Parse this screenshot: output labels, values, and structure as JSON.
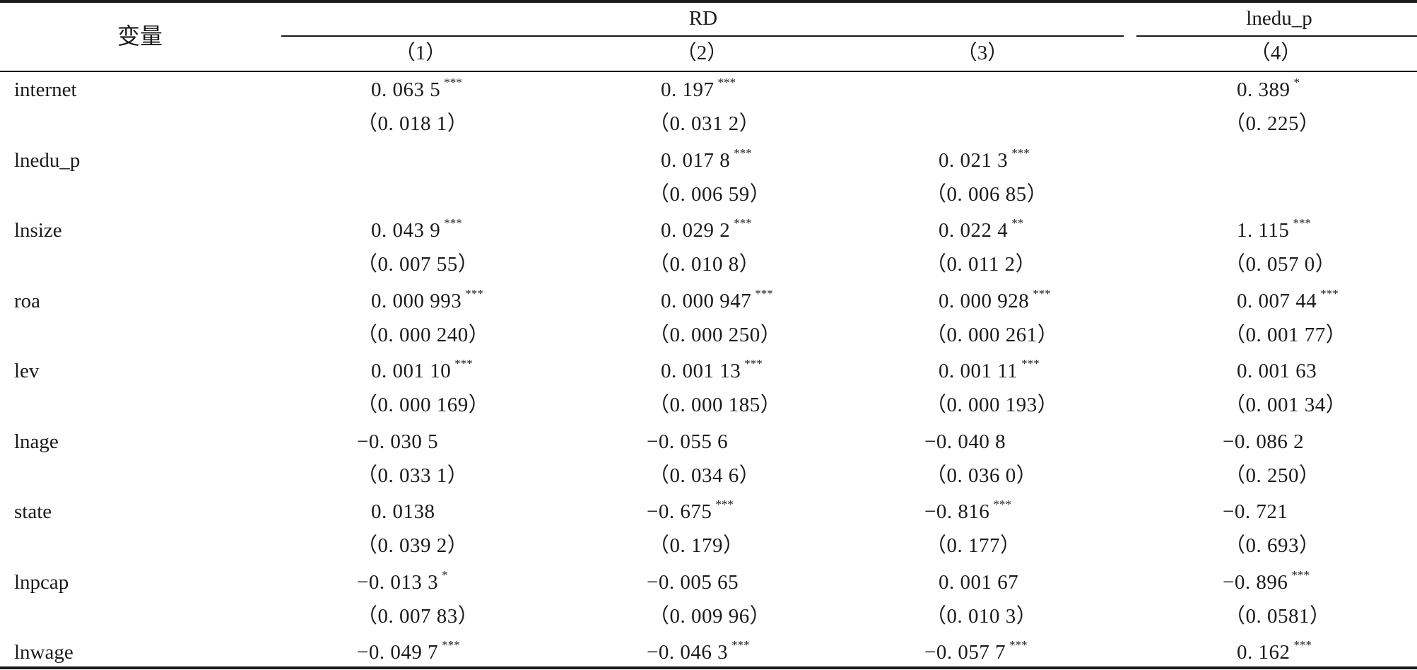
{
  "header": {
    "variable_label": "变量",
    "group_rd": "RD",
    "group_lnedu": "lnedu_p",
    "columns": [
      "（1）",
      "（2）",
      "（3）",
      "（4）"
    ]
  },
  "rows": [
    {
      "name": "internet",
      "coef": [
        {
          "v": "0. 063 5",
          "s": "***"
        },
        {
          "v": "0. 197",
          "s": "***"
        },
        {
          "v": "",
          "s": ""
        },
        {
          "v": "0. 389",
          "s": "*"
        }
      ],
      "se": [
        "（0. 018 1）",
        "（0. 031 2）",
        "",
        "（0. 225）"
      ]
    },
    {
      "name": "lnedu_p",
      "coef": [
        {
          "v": "",
          "s": ""
        },
        {
          "v": "0. 017 8",
          "s": "***"
        },
        {
          "v": "0. 021 3",
          "s": "***"
        },
        {
          "v": "",
          "s": ""
        }
      ],
      "se": [
        "",
        "（0. 006 59）",
        "（0. 006 85）",
        ""
      ]
    },
    {
      "name": "lnsize",
      "coef": [
        {
          "v": "0. 043 9",
          "s": "***"
        },
        {
          "v": "0. 029 2",
          "s": "***"
        },
        {
          "v": "0. 022 4",
          "s": "**"
        },
        {
          "v": "1. 115",
          "s": "***"
        }
      ],
      "se": [
        "（0. 007 55）",
        "（0. 010 8）",
        "（0. 011 2）",
        "（0. 057 0）"
      ]
    },
    {
      "name": "roa",
      "coef": [
        {
          "v": "0. 000 993",
          "s": "***"
        },
        {
          "v": "0. 000 947",
          "s": "***"
        },
        {
          "v": "0. 000 928",
          "s": "***"
        },
        {
          "v": "0. 007 44",
          "s": "***"
        }
      ],
      "se": [
        "（0. 000 240）",
        "（0. 000 250）",
        "（0. 000 261）",
        "（0. 001 77）"
      ]
    },
    {
      "name": "lev",
      "coef": [
        {
          "v": "0. 001 10",
          "s": "***"
        },
        {
          "v": "0. 001 13",
          "s": "***"
        },
        {
          "v": "0. 001 11",
          "s": "***"
        },
        {
          "v": "0. 001 63",
          "s": ""
        }
      ],
      "se": [
        "（0. 000 169）",
        "（0. 000 185）",
        "（0. 000 193）",
        "（0. 001 34）"
      ]
    },
    {
      "name": "lnage",
      "coef": [
        {
          "v": "−0. 030 5",
          "s": ""
        },
        {
          "v": "−0. 055 6",
          "s": ""
        },
        {
          "v": "−0. 040 8",
          "s": ""
        },
        {
          "v": "−0. 086 2",
          "s": ""
        }
      ],
      "se": [
        "（0. 033 1）",
        "（0. 034 6）",
        "（0. 036 0）",
        "（0. 250）"
      ]
    },
    {
      "name": "state",
      "coef": [
        {
          "v": "0. 0138",
          "s": ""
        },
        {
          "v": "−0. 675",
          "s": "***"
        },
        {
          "v": "−0. 816",
          "s": "***"
        },
        {
          "v": "−0. 721",
          "s": ""
        }
      ],
      "se": [
        "（0. 039 2）",
        "（0. 179）",
        "（0. 177）",
        "（0. 693）"
      ]
    },
    {
      "name": "lnpcap",
      "coef": [
        {
          "v": "−0. 013 3",
          "s": "*"
        },
        {
          "v": "−0. 005 65",
          "s": ""
        },
        {
          "v": "0. 001 67",
          "s": ""
        },
        {
          "v": "−0. 896",
          "s": "***"
        }
      ],
      "se": [
        "（0. 007 83）",
        "（0. 009 96）",
        "（0. 010 3）",
        "（0. 0581）"
      ]
    },
    {
      "name": "lnwage",
      "coef": [
        {
          "v": "−0. 049 7",
          "s": "***"
        },
        {
          "v": "−0. 046 3",
          "s": "***"
        },
        {
          "v": "−0. 057 7",
          "s": "***"
        },
        {
          "v": "0. 162",
          "s": "***"
        }
      ],
      "se": [
        "",
        "",
        "",
        ""
      ]
    }
  ]
}
